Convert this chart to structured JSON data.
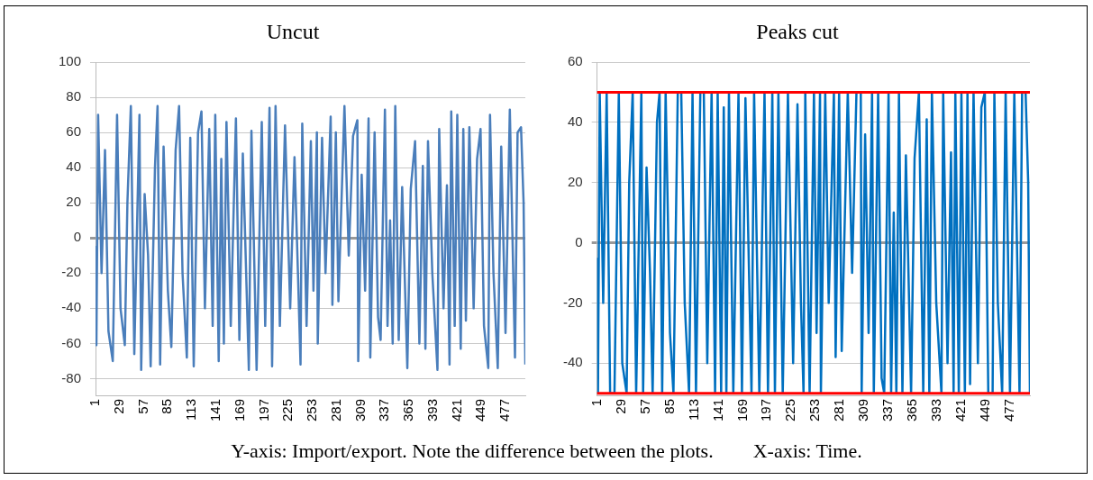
{
  "chart_data": [
    {
      "type": "line",
      "title": "Uncut",
      "xlim": [
        1,
        500
      ],
      "xticks": [
        1,
        29,
        57,
        85,
        113,
        141,
        169,
        197,
        225,
        253,
        281,
        309,
        337,
        365,
        393,
        421,
        449,
        477
      ],
      "ylim": [
        -90,
        100
      ],
      "yticks": [
        -80,
        -60,
        -40,
        -20,
        0,
        20,
        40,
        60,
        80,
        100
      ],
      "grid": "y",
      "marker": "none",
      "line_style": "solid",
      "annotations": [
        "Y-axis: Import/export. Note the difference between the plots.",
        "X-axis: Time."
      ],
      "series": [
        {
          "color": "#4a7ebb",
          "x": [
            1,
            2,
            4,
            8,
            12,
            16,
            21,
            26,
            30,
            35,
            38,
            42,
            46,
            52,
            54,
            58,
            62,
            65,
            70,
            73,
            76,
            80,
            85,
            89,
            94,
            98,
            102,
            107,
            111,
            115,
            120,
            124,
            128,
            133,
            137,
            140,
            144,
            147,
            150,
            153,
            158,
            164,
            168,
            172,
            179,
            182,
            188,
            194,
            198,
            203,
            206,
            210,
            215,
            221,
            227,
            232,
            236,
            239,
            241,
            246,
            251,
            254,
            258,
            259,
            264,
            268,
            274,
            276,
            280,
            283,
            290,
            295,
            300,
            305,
            306,
            310,
            314,
            318,
            320,
            325,
            329,
            332,
            337,
            340,
            343,
            346,
            349,
            353,
            357,
            363,
            367,
            372,
            377,
            381,
            384,
            387,
            392,
            398,
            400,
            405,
            409,
            412,
            414,
            418,
            421,
            425,
            428,
            431,
            435,
            440,
            444,
            448,
            452,
            457,
            459,
            463,
            468,
            472,
            477,
            482,
            488,
            491,
            495,
            498,
            500
          ],
          "values": [
            -5,
            -61,
            70,
            -20,
            50,
            -53,
            -70,
            70,
            -40,
            -61,
            20,
            75,
            -66,
            70,
            -75,
            25,
            -10,
            -73,
            40,
            75,
            -72,
            52,
            -30,
            -62,
            50,
            75,
            -20,
            -68,
            57,
            -73,
            60,
            72,
            -40,
            62,
            -50,
            70,
            -70,
            45,
            -60,
            66,
            -50,
            68,
            -58,
            48,
            -75,
            61,
            -75,
            66,
            -50,
            74,
            -73,
            75,
            -50,
            64,
            -40,
            46,
            -20,
            -72,
            65,
            -50,
            55,
            -30,
            60,
            -60,
            57,
            -20,
            69,
            -38,
            60,
            -36,
            75,
            -10,
            58,
            67,
            -70,
            36,
            -30,
            68,
            -68,
            60,
            -45,
            -58,
            73,
            -50,
            10,
            -60,
            75,
            -58,
            29,
            -74,
            28,
            55,
            -60,
            41,
            -63,
            55,
            -20,
            -75,
            62,
            -40,
            30,
            -72,
            72,
            -50,
            70,
            -63,
            62,
            -47,
            63,
            -40,
            45,
            62,
            -50,
            -74,
            70,
            -20,
            -74,
            52,
            -54,
            73,
            -68,
            60,
            63,
            20,
            -72
          ]
        }
      ]
    },
    {
      "type": "line",
      "title": "Peaks cut",
      "xlim": [
        1,
        500
      ],
      "xticks": [
        1,
        29,
        57,
        85,
        113,
        141,
        169,
        197,
        225,
        253,
        281,
        309,
        337,
        365,
        393,
        421,
        449,
        477
      ],
      "ylim": [
        -51,
        60
      ],
      "yticks": [
        -40,
        -20,
        0,
        20,
        40,
        60
      ],
      "grid": "y",
      "marker": "none",
      "line_style": "solid",
      "ref_lines": [
        {
          "axis": "y",
          "value": 50,
          "color": "#ff0000"
        },
        {
          "axis": "y",
          "value": -50,
          "color": "#ff0000"
        }
      ],
      "series": [
        {
          "color": "#0070c0",
          "x": [
            1,
            2,
            4,
            8,
            12,
            16,
            21,
            26,
            30,
            35,
            38,
            42,
            46,
            52,
            54,
            58,
            62,
            65,
            70,
            73,
            76,
            80,
            85,
            89,
            94,
            98,
            102,
            107,
            111,
            115,
            120,
            124,
            128,
            133,
            137,
            140,
            144,
            147,
            150,
            153,
            158,
            164,
            168,
            172,
            179,
            182,
            188,
            194,
            198,
            203,
            206,
            210,
            215,
            221,
            227,
            232,
            236,
            239,
            241,
            246,
            251,
            254,
            258,
            259,
            264,
            268,
            274,
            276,
            280,
            283,
            290,
            295,
            300,
            305,
            306,
            310,
            314,
            318,
            320,
            325,
            329,
            332,
            337,
            340,
            343,
            346,
            349,
            353,
            357,
            363,
            367,
            372,
            377,
            381,
            384,
            387,
            392,
            398,
            400,
            405,
            409,
            412,
            414,
            418,
            421,
            425,
            428,
            431,
            435,
            440,
            444,
            448,
            452,
            457,
            459,
            463,
            468,
            472,
            477,
            482,
            488,
            491,
            495,
            498,
            500
          ],
          "values": [
            -5,
            -50,
            50,
            -20,
            50,
            -50,
            -50,
            50,
            -40,
            -50,
            20,
            50,
            -50,
            50,
            -50,
            25,
            -10,
            -50,
            40,
            50,
            -50,
            50,
            -30,
            -50,
            50,
            50,
            -20,
            -50,
            50,
            -50,
            50,
            50,
            -40,
            50,
            -50,
            50,
            -50,
            45,
            -50,
            50,
            -50,
            50,
            -50,
            48,
            -50,
            50,
            -50,
            50,
            -50,
            50,
            -50,
            50,
            -50,
            50,
            -40,
            46,
            -20,
            -50,
            50,
            -50,
            50,
            -30,
            50,
            -50,
            50,
            -20,
            50,
            -38,
            50,
            -36,
            50,
            -10,
            50,
            50,
            -50,
            36,
            -30,
            50,
            -50,
            50,
            -45,
            -50,
            50,
            -50,
            10,
            -50,
            50,
            -50,
            29,
            -50,
            28,
            50,
            -50,
            41,
            -50,
            50,
            -20,
            -50,
            50,
            -40,
            30,
            -50,
            50,
            -50,
            50,
            -50,
            50,
            -47,
            50,
            -40,
            45,
            50,
            -50,
            -50,
            50,
            -20,
            -50,
            50,
            -50,
            50,
            -50,
            50,
            50,
            20,
            -50
          ]
        }
      ]
    }
  ]
}
